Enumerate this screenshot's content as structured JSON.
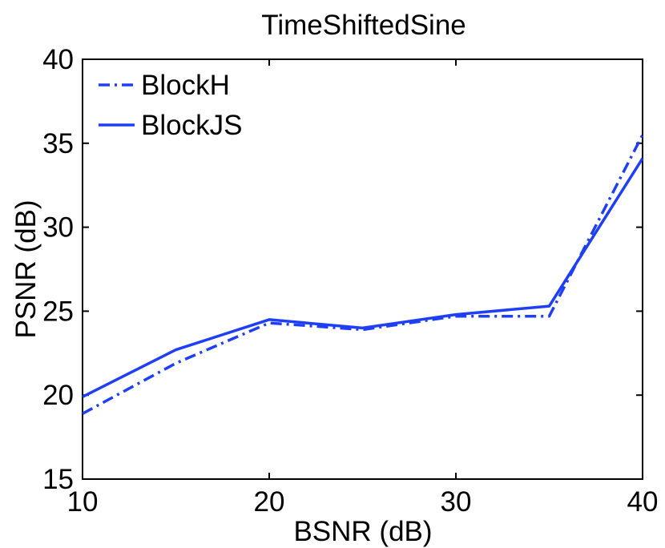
{
  "chart_data": {
    "type": "line",
    "title": "TimeShiftedSine",
    "xlabel": "BSNR (dB)",
    "ylabel": "PSNR (dB)",
    "xlim": [
      10,
      40
    ],
    "ylim": [
      15,
      40
    ],
    "xticks": [
      10,
      20,
      30,
      40
    ],
    "yticks": [
      15,
      20,
      25,
      30,
      35,
      40
    ],
    "grid": false,
    "legend_position": "top-left",
    "x": [
      10,
      15,
      20,
      25,
      30,
      35,
      40
    ],
    "series": [
      {
        "name": "BlockH",
        "style": "dash-dot",
        "color": "#1f3ff5",
        "values": [
          18.9,
          21.9,
          24.3,
          23.9,
          24.7,
          24.7,
          35.5
        ]
      },
      {
        "name": "BlockJS",
        "style": "solid",
        "color": "#1f3ff5",
        "values": [
          19.9,
          22.7,
          24.5,
          24.0,
          24.8,
          25.3,
          34.1
        ]
      }
    ]
  }
}
